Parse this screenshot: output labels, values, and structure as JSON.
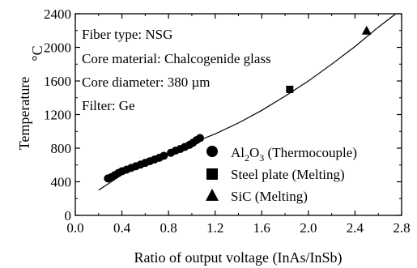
{
  "chart_data": {
    "type": "scatter",
    "xlabel": "Ratio of output voltage (InAs/InSb)",
    "ylabel": "Temperature",
    "ylabel_unit": "°C",
    "xlim": [
      0.0,
      2.8
    ],
    "ylim": [
      0,
      2400
    ],
    "x_ticks": [
      0.0,
      0.4,
      0.8,
      1.2,
      1.6,
      2.0,
      2.4,
      2.8
    ],
    "x_tick_labels": [
      "0.0",
      "0.4",
      "0.8",
      "1.2",
      "1.6",
      "2.0",
      "2.4",
      "2.8"
    ],
    "y_ticks": [
      0,
      400,
      800,
      1200,
      1600,
      2000,
      2400
    ],
    "y_tick_labels": [
      "0",
      "400",
      "800",
      "1200",
      "1600",
      "2000",
      "2400"
    ],
    "annotations": [
      "Fiber type: NSG",
      "Core material: Chalcogenide glass",
      "Core diameter: 380 µm",
      "Filter: Ge"
    ],
    "series": [
      {
        "name": "Al2O3 (Thermocouple)",
        "marker": "circle",
        "points": [
          [
            0.28,
            440
          ],
          [
            0.31,
            455
          ],
          [
            0.34,
            480
          ],
          [
            0.37,
            505
          ],
          [
            0.4,
            525
          ],
          [
            0.44,
            545
          ],
          [
            0.48,
            565
          ],
          [
            0.52,
            585
          ],
          [
            0.56,
            605
          ],
          [
            0.6,
            625
          ],
          [
            0.64,
            645
          ],
          [
            0.68,
            665
          ],
          [
            0.72,
            685
          ],
          [
            0.76,
            710
          ],
          [
            0.82,
            745
          ],
          [
            0.86,
            770
          ],
          [
            0.9,
            790
          ],
          [
            0.94,
            815
          ],
          [
            0.98,
            840
          ],
          [
            1.01,
            865
          ],
          [
            1.04,
            895
          ],
          [
            1.07,
            920
          ]
        ]
      },
      {
        "name": "Steel plate (Melting)",
        "marker": "square",
        "points": [
          [
            1.84,
            1500
          ]
        ]
      },
      {
        "name": "SiC (Melting)",
        "marker": "triangle",
        "points": [
          [
            2.5,
            2200
          ]
        ]
      }
    ],
    "fit_curve": {
      "name": "",
      "points": [
        [
          0.2,
          300
        ],
        [
          0.4,
          485
        ],
        [
          0.6,
          620
        ],
        [
          0.8,
          745
        ],
        [
          1.0,
          860
        ],
        [
          1.2,
          970
        ],
        [
          1.4,
          1100
        ],
        [
          1.6,
          1250
        ],
        [
          1.8,
          1420
        ],
        [
          2.0,
          1600
        ],
        [
          2.2,
          1800
        ],
        [
          2.4,
          2010
        ],
        [
          2.6,
          2240
        ],
        [
          2.75,
          2400
        ]
      ]
    },
    "legend_position": "center-right",
    "grid": false
  }
}
